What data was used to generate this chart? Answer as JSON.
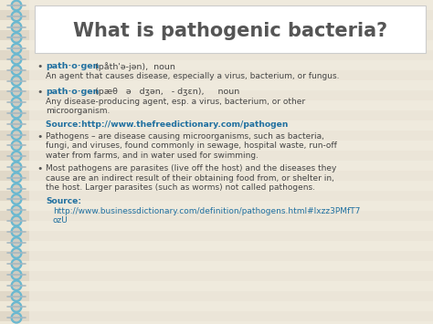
{
  "title": "What is pathogenic bacteria?",
  "title_fontsize": 15,
  "title_color": "#555555",
  "bg_color": "#d4cbb8",
  "stripe_light": "#eee8d8",
  "stripe_dark": "#e0d8c8",
  "content_bg": "#f0ebe0",
  "spiral_blue": "#6ab8d0",
  "spiral_gray": "#909090",
  "blue_link": "#2070a0",
  "text_color": "#444444",
  "bullet_color": "#555555",
  "line1_bold": "path·o·gen",
  "line1_phonetic": "  (påth'ə-jən),  noun",
  "line1_def": "An agent that causes disease, especially a virus, bacterium, or fungus.",
  "line2_bold": "path·o·gen",
  "line2_phonetic": "  (pæθ   ə   dʒən,   - dʒɛn),     noun",
  "line2_def1": "Any disease-producing agent, esp. a virus, bacterium, or other",
  "line2_def2": "microorganism.",
  "source1_label": "Source: ",
  "source1_url": " http://www.thefreedictionary.com/pathogen",
  "bullet3_lines": [
    "Pathogens – are disease causing microorganisms, such as bacteria,",
    "fungi, and viruses, found commonly in sewage, hospital waste, run-off",
    "water from farms, and in water used for swimming."
  ],
  "bullet4_lines": [
    "Most pathogens are parasites (live off the host) and the diseases they",
    "cause are an indirect result of their obtaining food from, or shelter in,",
    "the host. Larger parasites (such as worms) not called pathogens."
  ],
  "source2_label": "Source:",
  "source2_url1": "http://www.businessdictionary.com/definition/pathogens.html#Ixzz3PMfT7",
  "source2_url2": "ozU",
  "title_box_color": "#ffffff",
  "title_box_edge": "#cccccc"
}
